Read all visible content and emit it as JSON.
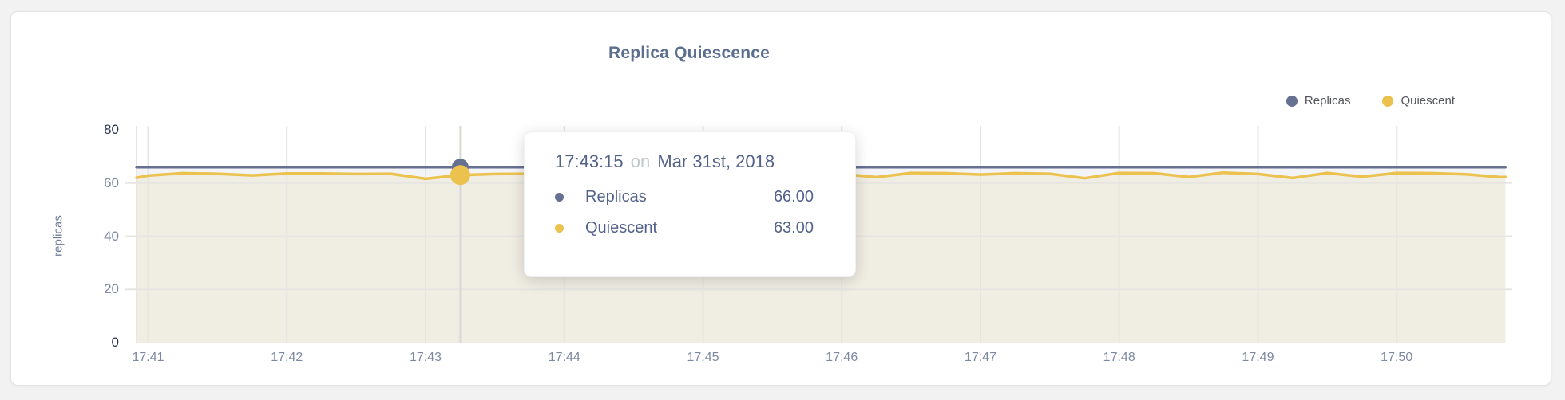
{
  "header": {
    "title": "Replica Quiescence"
  },
  "legend": {
    "items": [
      {
        "label": "Replicas",
        "color": "#667090"
      },
      {
        "label": "Quiescent",
        "color": "#ecc24e"
      }
    ]
  },
  "axes": {
    "y_label": "replicas",
    "y_ticks": [
      "0",
      "20",
      "40",
      "60",
      "80"
    ],
    "x_ticks": [
      "17:41",
      "17:42",
      "17:43",
      "17:44",
      "17:45",
      "17:46",
      "17:47",
      "17:48",
      "17:49",
      "17:50"
    ]
  },
  "tooltip": {
    "time": "17:43:15",
    "connector": "on",
    "date": "Mar 31st, 2018",
    "rows": [
      {
        "label": "Replicas",
        "value": "66.00",
        "color": "#667090"
      },
      {
        "label": "Quiescent",
        "value": "63.00",
        "color": "#ecc24e"
      }
    ]
  },
  "colors": {
    "replicas": "#667090",
    "quiescent": "#ecc24e",
    "replicas_fill": "#f3f4f7",
    "quiescent_fill": "#f0ede3",
    "grid": "#e6e5e1",
    "hover_line": "#d8d8d4",
    "title": "#5b6e8f",
    "axis_text": "#7d89a3",
    "axis_text_dark": "#273452",
    "y_label_text": "#6d7c9b",
    "legend_text": "#515559",
    "tooltip_text": "#53628a",
    "tooltip_muted": "#c2c6cd",
    "card_bg": "#ffffff",
    "page_bg": "#f2f2f3"
  },
  "chart_data": {
    "type": "area",
    "title": "Replica Quiescence",
    "xlabel": "",
    "ylabel": "replicas",
    "ylim": [
      0,
      80
    ],
    "grid": true,
    "legend_position": "top-right",
    "x_range": [
      "17:40:55",
      "17:50:50"
    ],
    "times": [
      "17:40:55",
      "17:41:00",
      "17:41:15",
      "17:41:30",
      "17:41:45",
      "17:42:00",
      "17:42:15",
      "17:42:30",
      "17:42:45",
      "17:43:00",
      "17:43:15",
      "17:43:30",
      "17:43:45",
      "17:44:00",
      "17:44:15",
      "17:44:30",
      "17:44:45",
      "17:45:00",
      "17:45:15",
      "17:45:30",
      "17:45:45",
      "17:46:00",
      "17:46:15",
      "17:46:30",
      "17:46:45",
      "17:47:00",
      "17:47:15",
      "17:47:30",
      "17:47:45",
      "17:48:00",
      "17:48:15",
      "17:48:30",
      "17:48:45",
      "17:49:00",
      "17:49:15",
      "17:49:30",
      "17:49:45",
      "17:50:00",
      "17:50:15",
      "17:50:30",
      "17:50:45",
      "17:50:47"
    ],
    "series": [
      {
        "name": "Replicas",
        "color": "#667090",
        "fill": "#f3f4f7",
        "values": [
          66,
          66,
          66,
          66,
          66,
          66,
          66,
          66,
          66,
          66,
          66,
          66,
          66,
          66,
          66,
          66,
          66,
          66,
          66,
          66,
          66,
          66,
          66,
          66,
          66,
          66,
          66,
          66,
          66,
          66,
          66,
          66,
          66,
          66,
          66,
          66,
          66,
          66,
          66,
          66,
          66,
          66
        ]
      },
      {
        "name": "Quiescent",
        "color": "#ecc24e",
        "fill": "#f0ede3",
        "values": [
          62.0,
          62.8,
          63.7,
          63.5,
          62.9,
          63.6,
          63.6,
          63.4,
          63.5,
          61.6,
          63.0,
          63.4,
          63.5,
          63.3,
          63.6,
          63.2,
          63.5,
          63.4,
          63.6,
          63.3,
          63.6,
          63.4,
          62.2,
          63.8,
          63.7,
          63.2,
          63.7,
          63.5,
          61.8,
          63.8,
          63.7,
          62.3,
          63.9,
          63.4,
          61.9,
          63.8,
          62.4,
          63.8,
          63.7,
          63.3,
          62.2,
          62.3
        ]
      }
    ],
    "hover": {
      "time": "17:43:15",
      "values": [
        66,
        63
      ]
    }
  }
}
